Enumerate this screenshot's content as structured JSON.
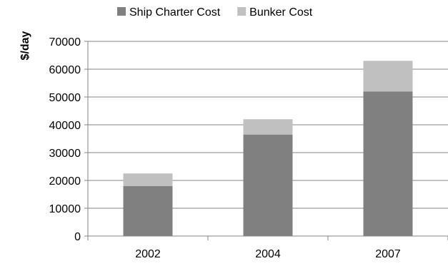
{
  "chart_data": {
    "type": "bar",
    "stacked": true,
    "categories": [
      "2002",
      "2004",
      "2007"
    ],
    "series": [
      {
        "name": "Ship Charter Cost",
        "values": [
          18000,
          36500,
          52000
        ],
        "color": "#808080"
      },
      {
        "name": "Bunker Cost",
        "values": [
          4500,
          5500,
          11000
        ],
        "color": "#c0c0c0"
      }
    ],
    "title": "",
    "xlabel": "",
    "ylabel": "$/day",
    "ylim": [
      0,
      70000
    ],
    "yticks": [
      0,
      10000,
      20000,
      30000,
      40000,
      50000,
      60000,
      70000
    ],
    "grid": true,
    "legend_position": "top"
  }
}
